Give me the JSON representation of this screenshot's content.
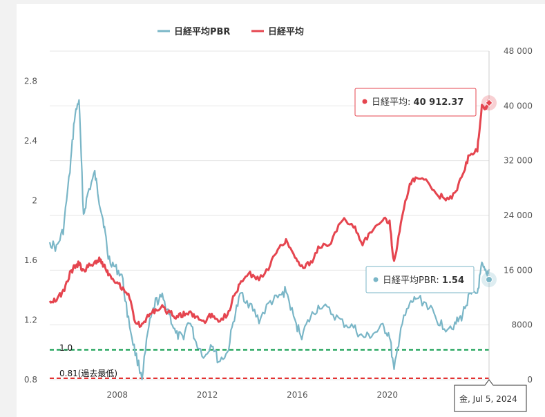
{
  "colors": {
    "pbr": "#7ab6c7",
    "nikkei": "#e5454f",
    "ref_green": "#0a9a4a",
    "ref_red": "#e01d1d",
    "grid": "#e6e6e6"
  },
  "legend": [
    {
      "label": "日経平均PBR",
      "color": "#7ab6c7"
    },
    {
      "label": "日経平均",
      "color": "#e5454f"
    }
  ],
  "tooltips": {
    "nikkei": {
      "label": "日経平均",
      "value": "40 912.37"
    },
    "pbr": {
      "label": "日経平均PBR",
      "value": "1.54"
    },
    "date": "金, Jul 5, 2024"
  },
  "reference_lines": [
    {
      "label": "1.0",
      "value": 1.0,
      "color": "#0a9a4a"
    },
    {
      "label": "0.81(過去最低)",
      "value": 0.81,
      "color": "#e01d1d"
    }
  ],
  "chart_data": {
    "type": "line",
    "x_range": [
      2005.0,
      2024.52
    ],
    "x_ticks": [
      "2008",
      "2012",
      "2016",
      "2020"
    ],
    "left_axis": {
      "range": [
        0.8,
        3.0
      ],
      "ticks": [
        "0.8",
        "1.2",
        "1.6",
        "2",
        "2.4",
        "2.8"
      ]
    },
    "right_axis": {
      "range": [
        0,
        48000
      ],
      "ticks": [
        "0",
        "8000",
        "16 000",
        "24 000",
        "32 000",
        "40 000",
        "48 000"
      ]
    },
    "grid": true,
    "legend_position": "top-center",
    "series": [
      {
        "name": "日経平均PBR",
        "axis": "left",
        "x": [
          2005.0,
          2005.3,
          2005.6,
          2005.9,
          2006.1,
          2006.3,
          2006.5,
          2006.7,
          2007.0,
          2007.2,
          2007.4,
          2007.6,
          2007.9,
          2008.2,
          2008.5,
          2008.8,
          2009.1,
          2009.4,
          2009.7,
          2010.0,
          2010.3,
          2010.6,
          2010.9,
          2011.2,
          2011.5,
          2011.9,
          2012.2,
          2012.5,
          2012.9,
          2013.2,
          2013.5,
          2013.9,
          2014.3,
          2014.8,
          2015.2,
          2015.5,
          2015.9,
          2016.2,
          2016.6,
          2017.0,
          2017.5,
          2018.0,
          2018.5,
          2018.9,
          2019.3,
          2019.8,
          2020.1,
          2020.3,
          2020.6,
          2021.0,
          2021.3,
          2021.8,
          2022.2,
          2022.6,
          2023.0,
          2023.3,
          2023.6,
          2024.0,
          2024.2,
          2024.4,
          2024.52
        ],
        "values": [
          1.72,
          1.68,
          1.8,
          2.2,
          2.55,
          2.68,
          1.9,
          2.05,
          2.18,
          2.0,
          1.85,
          1.62,
          1.55,
          1.5,
          1.2,
          0.98,
          0.82,
          1.15,
          1.32,
          1.35,
          1.25,
          1.1,
          1.08,
          1.2,
          1.05,
          0.95,
          1.05,
          0.92,
          0.98,
          1.22,
          1.38,
          1.3,
          1.2,
          1.32,
          1.35,
          1.4,
          1.18,
          1.1,
          1.22,
          1.3,
          1.25,
          1.18,
          1.15,
          1.08,
          1.1,
          1.15,
          1.1,
          0.85,
          1.15,
          1.3,
          1.35,
          1.3,
          1.2,
          1.15,
          1.17,
          1.22,
          1.35,
          1.38,
          1.56,
          1.5,
          1.54
        ]
      },
      {
        "name": "日経平均",
        "axis": "right",
        "x": [
          2005.0,
          2005.3,
          2005.6,
          2005.9,
          2006.1,
          2006.3,
          2006.5,
          2006.7,
          2007.0,
          2007.2,
          2007.4,
          2007.6,
          2007.9,
          2008.2,
          2008.5,
          2008.8,
          2009.1,
          2009.4,
          2009.7,
          2010.0,
          2010.3,
          2010.6,
          2010.9,
          2011.2,
          2011.5,
          2011.9,
          2012.2,
          2012.5,
          2012.9,
          2013.2,
          2013.5,
          2013.9,
          2014.3,
          2014.8,
          2015.2,
          2015.5,
          2015.9,
          2016.2,
          2016.6,
          2017.0,
          2017.5,
          2018.0,
          2018.5,
          2018.9,
          2019.3,
          2019.8,
          2020.1,
          2020.3,
          2020.6,
          2021.0,
          2021.3,
          2021.8,
          2022.2,
          2022.6,
          2023.0,
          2023.3,
          2023.6,
          2024.0,
          2024.2,
          2024.4,
          2024.52
        ],
        "values": [
          11500,
          11800,
          12800,
          15500,
          16500,
          17000,
          15800,
          16500,
          17200,
          17500,
          16800,
          15600,
          14500,
          13500,
          12500,
          8500,
          7800,
          9500,
          10200,
          10500,
          9800,
          9300,
          9500,
          9800,
          9200,
          8500,
          9600,
          8800,
          9500,
          12300,
          14200,
          15500,
          14500,
          16800,
          19500,
          20400,
          18000,
          16500,
          17000,
          19500,
          20000,
          23500,
          22500,
          20000,
          21500,
          23500,
          23000,
          17000,
          23000,
          28500,
          29500,
          28800,
          27000,
          26500,
          27000,
          29500,
          32500,
          33500,
          40000,
          39500,
          40912.37
        ]
      }
    ]
  }
}
